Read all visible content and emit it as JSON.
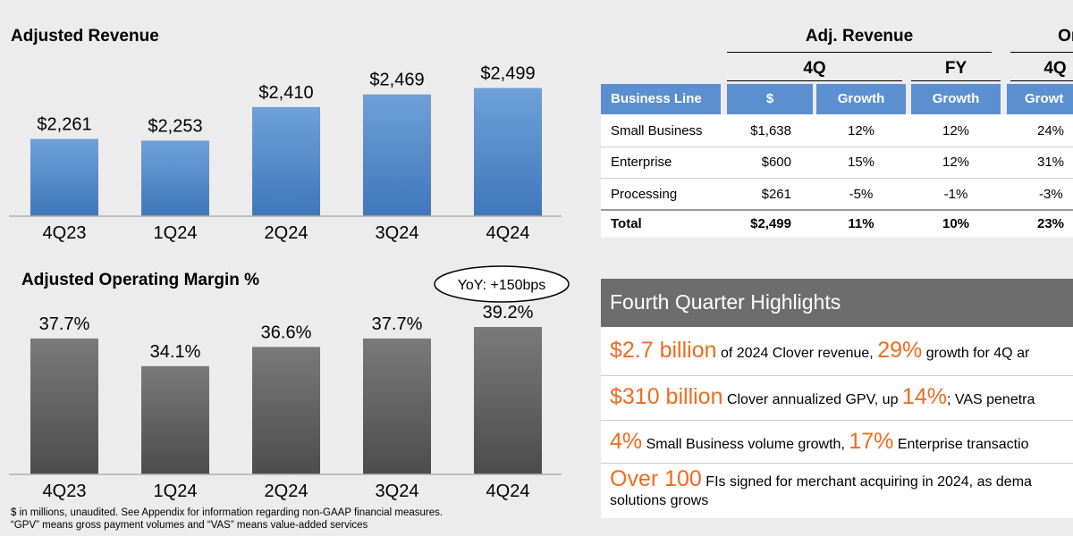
{
  "chart_data": [
    {
      "type": "bar",
      "title": "Adjusted Revenue",
      "categories": [
        "4Q23",
        "1Q24",
        "2Q24",
        "3Q24",
        "4Q24"
      ],
      "values": [
        2261,
        2253,
        2410,
        2469,
        2499
      ],
      "value_labels": [
        "$2,261",
        "$2,253",
        "$2,410",
        "$2,469",
        "$2,499"
      ],
      "color": "#4d86c6"
    },
    {
      "type": "bar",
      "title": "Adjusted Operating Margin %",
      "categories": [
        "4Q23",
        "1Q24",
        "2Q24",
        "3Q24",
        "4Q24"
      ],
      "values": [
        37.7,
        34.1,
        36.6,
        37.7,
        39.2
      ],
      "value_labels": [
        "37.7%",
        "34.1%",
        "36.6%",
        "37.7%",
        "39.2%"
      ],
      "annotation": "YoY: +150bps",
      "color": "#5f5f5f"
    },
    {
      "type": "table",
      "group_headers": [
        "Adj. Revenue",
        "Org"
      ],
      "sub_headers": [
        "4Q",
        "FY",
        "4Q"
      ],
      "columns": [
        "Business Line",
        "$",
        "Growth",
        "Growth",
        "Growt"
      ],
      "rows": [
        [
          "Small Business",
          "$1,638",
          "12%",
          "12%",
          "24%"
        ],
        [
          "Enterprise",
          "$600",
          "15%",
          "12%",
          "31%"
        ],
        [
          "Processing",
          "$261",
          "-5%",
          "-1%",
          "-3%"
        ],
        [
          "Total",
          "$2,499",
          "11%",
          "10%",
          "23%"
        ]
      ]
    }
  ],
  "highlights": {
    "title": "Fourth Quarter Highlights",
    "items": [
      {
        "parts": [
          {
            "text": "$2.7 billion",
            "em": true
          },
          {
            "text": " of 2024 Clover revenue, ",
            "em": false
          },
          {
            "text": "29%",
            "em": true
          },
          {
            "text": " growth for 4Q ar",
            "em": false
          }
        ]
      },
      {
        "parts": [
          {
            "text": "$310 billion",
            "em": true
          },
          {
            "text": " Clover annualized GPV, up ",
            "em": false
          },
          {
            "text": "14%",
            "em": true
          },
          {
            "text": "; VAS penetra",
            "em": false
          }
        ]
      },
      {
        "parts": [
          {
            "text": "4%",
            "em": true
          },
          {
            "text": " Small Business volume growth, ",
            "em": false
          },
          {
            "text": "17%",
            "em": true
          },
          {
            "text": " Enterprise transactio",
            "em": false
          }
        ]
      },
      {
        "parts": [
          {
            "text": "Over 100",
            "em": true
          },
          {
            "text": " FIs signed for merchant acquiring in 2024, as dema",
            "em": false
          }
        ],
        "line2": "solutions grows"
      }
    ]
  },
  "footnotes": [
    "$ in millions, unaudited. See Appendix for information regarding non-GAAP financial measures.",
    "“GPV” means gross payment volumes and “VAS” means value-added services"
  ],
  "colors": {
    "revenue_top": "#6fa1d8",
    "revenue_bottom": "#3f77bb",
    "margin_top": "#7a7a7a",
    "margin_bottom": "#4c4c4c",
    "header_blue": "#5b8fd0",
    "accent_orange": "#f26b1d",
    "panel_gray": "#6d6d6d"
  }
}
